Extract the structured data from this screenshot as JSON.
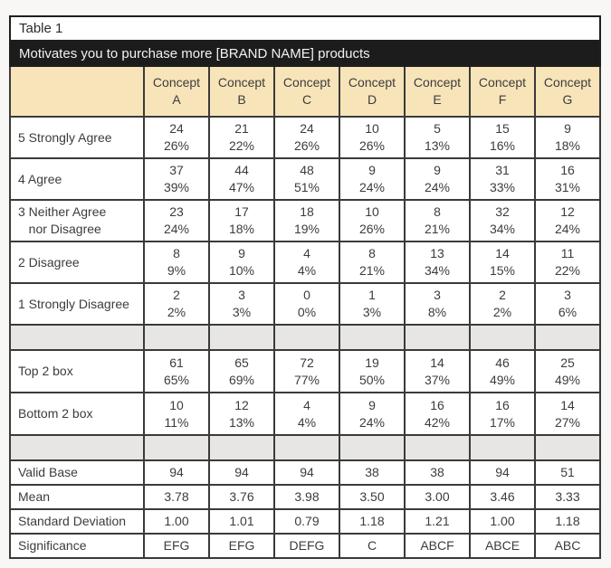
{
  "chart_data": {
    "type": "table",
    "title": "Table 1",
    "question": "Motivates you to purchase more [BRAND NAME] products",
    "columns": [
      "Concept\nA",
      "Concept\nB",
      "Concept\nC",
      "Concept\nD",
      "Concept\nE",
      "Concept\nF",
      "Concept\nG"
    ],
    "rows": [
      {
        "kind": "freq",
        "label": "5 Strongly Agree",
        "counts": [
          "24",
          "21",
          "24",
          "10",
          "5",
          "15",
          "9"
        ],
        "percents": [
          "26%",
          "22%",
          "26%",
          "26%",
          "13%",
          "16%",
          "18%"
        ]
      },
      {
        "kind": "freq",
        "label": "4 Agree",
        "counts": [
          "37",
          "44",
          "48",
          "9",
          "9",
          "31",
          "16"
        ],
        "percents": [
          "39%",
          "47%",
          "51%",
          "24%",
          "24%",
          "33%",
          "31%"
        ]
      },
      {
        "kind": "freq",
        "label": "3 Neither Agree\n   nor Disagree",
        "counts": [
          "23",
          "17",
          "18",
          "10",
          "8",
          "32",
          "12"
        ],
        "percents": [
          "24%",
          "18%",
          "19%",
          "26%",
          "21%",
          "34%",
          "24%"
        ]
      },
      {
        "kind": "freq",
        "label": "2 Disagree",
        "counts": [
          "8",
          "9",
          "4",
          "8",
          "13",
          "14",
          "11"
        ],
        "percents": [
          "9%",
          "10%",
          "4%",
          "21%",
          "34%",
          "15%",
          "22%"
        ]
      },
      {
        "kind": "freq",
        "label": "1 Strongly Disagree",
        "counts": [
          "2",
          "3",
          "0",
          "1",
          "3",
          "2",
          "3"
        ],
        "percents": [
          "2%",
          "3%",
          "0%",
          "3%",
          "8%",
          "2%",
          "6%"
        ]
      },
      {
        "kind": "spacer"
      },
      {
        "kind": "freq2",
        "label": "Top 2 box",
        "counts": [
          "61",
          "65",
          "72",
          "19",
          "14",
          "46",
          "25"
        ],
        "percents": [
          "65%",
          "69%",
          "77%",
          "50%",
          "37%",
          "49%",
          "49%"
        ]
      },
      {
        "kind": "freq2",
        "label": "Bottom 2 box",
        "counts": [
          "10",
          "12",
          "4",
          "9",
          "16",
          "16",
          "14"
        ],
        "percents": [
          "11%",
          "13%",
          "4%",
          "24%",
          "42%",
          "17%",
          "27%"
        ]
      },
      {
        "kind": "spacer"
      },
      {
        "kind": "stat",
        "label": "Valid Base",
        "values": [
          "94",
          "94",
          "94",
          "38",
          "38",
          "94",
          "51"
        ]
      },
      {
        "kind": "stat",
        "label": "Mean",
        "values": [
          "3.78",
          "3.76",
          "3.98",
          "3.50",
          "3.00",
          "3.46",
          "3.33"
        ]
      },
      {
        "kind": "stat",
        "label": "Standard Deviation",
        "values": [
          "1.00",
          "1.01",
          "0.79",
          "1.18",
          "1.21",
          "1.00",
          "1.18"
        ]
      },
      {
        "kind": "stat",
        "label": "Significance",
        "values": [
          "EFG",
          "EFG",
          "DEFG",
          "C",
          "ABCF",
          "ABCE",
          "ABC"
        ]
      }
    ]
  },
  "colors": {
    "header_bg": "#f8e4b9",
    "banner_bg": "#1c1c1c",
    "banner_text": "#f2f2f2",
    "spacer_bg": "#e7e6e5",
    "border": "#3a3a3a",
    "text": "#3c3c3c",
    "page_bg": "#f8f7f5"
  }
}
